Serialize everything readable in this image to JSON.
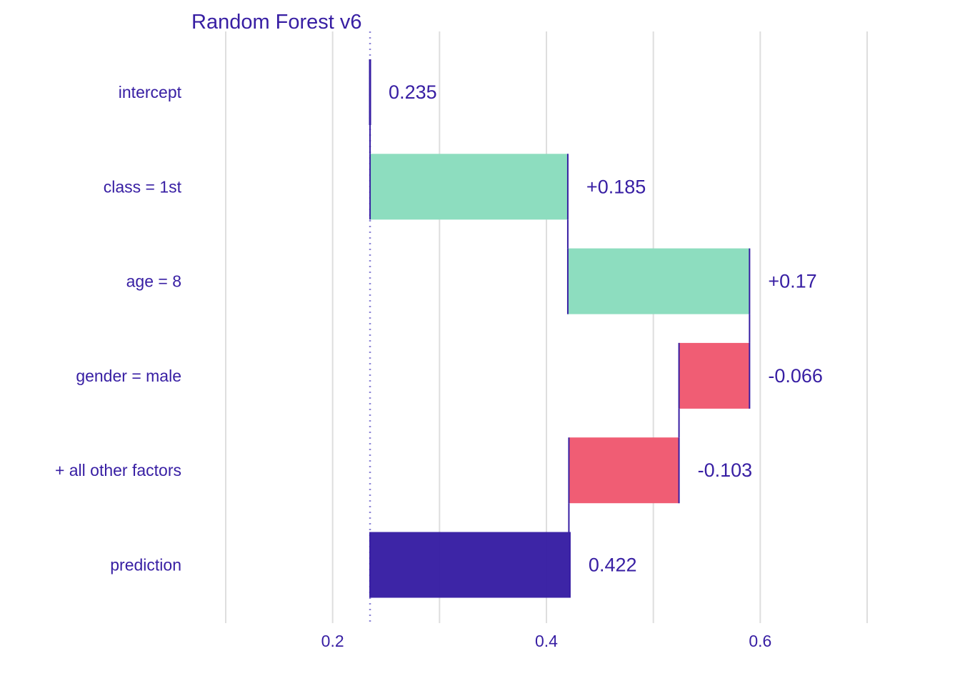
{
  "chart_data": {
    "type": "bar",
    "subtype": "waterfall",
    "title": "Random Forest v6",
    "xlabel": "",
    "ylabel": "",
    "xlim": [
      0.1,
      0.7
    ],
    "x_ticks": [
      0.2,
      0.4,
      0.6
    ],
    "grid": true,
    "categories": [
      "intercept",
      "class = 1st",
      "age = 8",
      "gender = male",
      "+ all other factors",
      "prediction"
    ],
    "contributions": [
      0.235,
      0.185,
      0.17,
      -0.066,
      -0.103,
      0.422
    ],
    "labels": [
      "0.235",
      "+0.185",
      "+0.17",
      "-0.066",
      "-0.103",
      "0.422"
    ],
    "baseline": 0.235,
    "prediction": 0.422,
    "colors": {
      "positive": "#8bdcbe",
      "negative": "#f05a71",
      "prediction": "#371ea3",
      "text": "#371ea3",
      "grid": "#dedede",
      "baseline_line": "#8c84d6"
    }
  }
}
